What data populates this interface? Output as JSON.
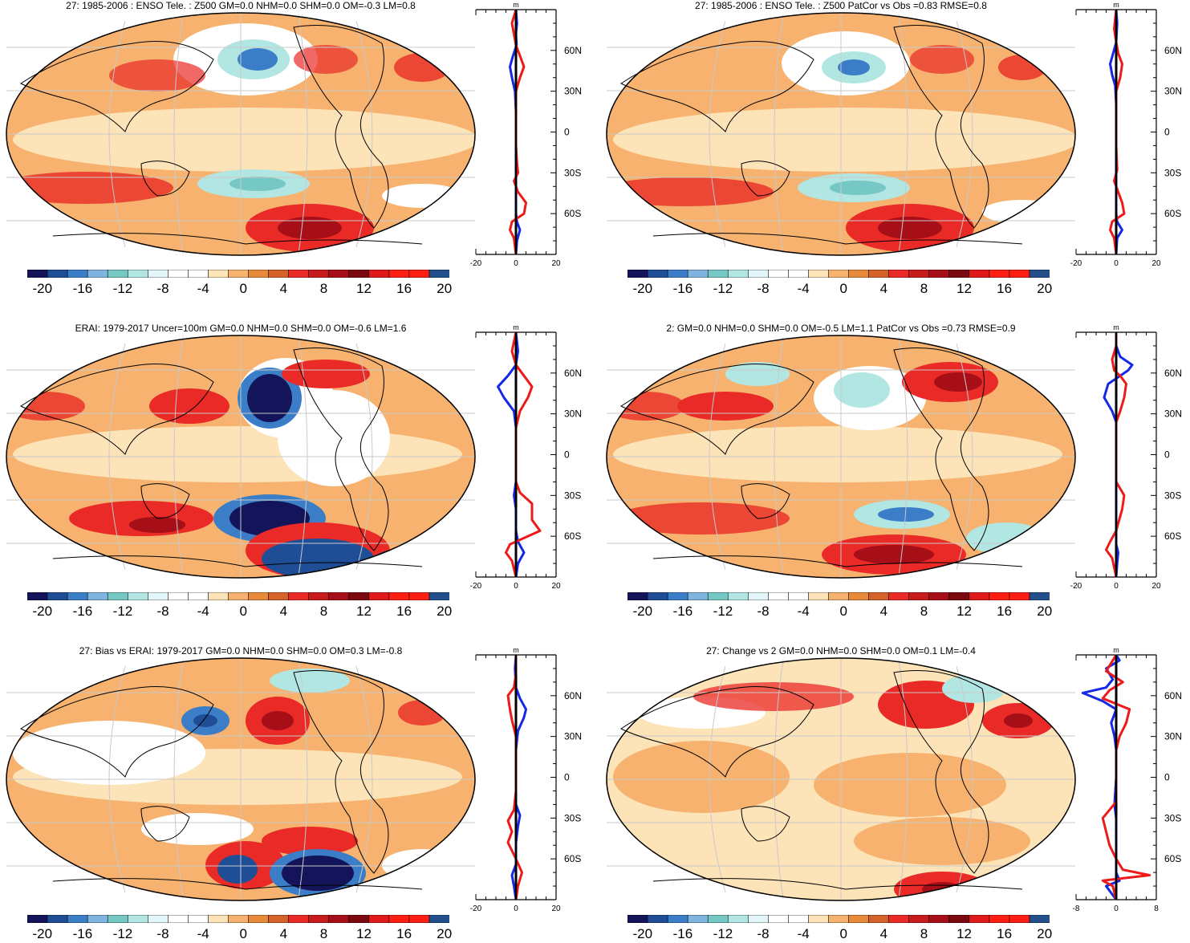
{
  "colorbar": {
    "colors": [
      "#14145a",
      "#1f4e96",
      "#3b7ec7",
      "#7fb3e0",
      "#76c8c4",
      "#b2e6e2",
      "#e3f7fb",
      "#ffffff",
      "#ffffff",
      "#fde3b8",
      "#f6b26e",
      "#e78a3c",
      "#d4622a",
      "#ea2a26",
      "#c81c1c",
      "#a60f18",
      "#7c0810",
      "#e01a1a",
      "#ff1e14",
      "#ff1e14",
      "#234f8a"
    ],
    "labels": [
      "-20",
      "-16",
      "-12",
      "-8",
      "-4",
      "0",
      "4",
      "8",
      "12",
      "16",
      "20"
    ]
  },
  "panels": [
    {
      "title": "27: 1985-2006 : ENSO Tele. : Z500 GM=0.0 NHM=0.0 SHM=0.0 OM=-0.3 LM=0.8",
      "zonal_unit": "m",
      "zonal_xticks": [
        "-20",
        "0",
        "20"
      ],
      "zonal_yticks": [
        "60N",
        "30N",
        "0",
        "30S",
        "60S"
      ],
      "zonal_range": [
        -20,
        20
      ],
      "blue_curve": [
        [
          -90,
          0
        ],
        [
          -80,
          0.5
        ],
        [
          -72,
          2
        ],
        [
          -66,
          0.5
        ],
        [
          -60,
          0
        ],
        [
          -45,
          0
        ],
        [
          -30,
          0
        ],
        [
          -15,
          0
        ],
        [
          0,
          0
        ],
        [
          15,
          0
        ],
        [
          30,
          -0.5
        ],
        [
          40,
          -2
        ],
        [
          48,
          -3
        ],
        [
          56,
          -1.5
        ],
        [
          64,
          0.3
        ],
        [
          72,
          0
        ],
        [
          80,
          0.5
        ],
        [
          90,
          0
        ]
      ],
      "red_curve": [
        [
          -90,
          0
        ],
        [
          -78,
          -1
        ],
        [
          -72,
          -3
        ],
        [
          -66,
          -2
        ],
        [
          -60,
          4
        ],
        [
          -52,
          5
        ],
        [
          -44,
          1
        ],
        [
          -36,
          -1
        ],
        [
          -30,
          1
        ],
        [
          -22,
          0.5
        ],
        [
          -10,
          0
        ],
        [
          10,
          0
        ],
        [
          30,
          0
        ],
        [
          40,
          2
        ],
        [
          48,
          4
        ],
        [
          56,
          2
        ],
        [
          64,
          0
        ],
        [
          72,
          -1
        ],
        [
          80,
          -2
        ],
        [
          90,
          0
        ]
      ]
    },
    {
      "title": "27: 1985-2006 : ENSO Tele. : Z500 PatCor vs Obs =0.83 RMSE=0.8",
      "zonal_unit": "m",
      "zonal_xticks": [
        "-20",
        "0",
        "20"
      ],
      "zonal_yticks": [
        "60N",
        "30N",
        "0",
        "30S",
        "60S"
      ],
      "zonal_range": [
        -20,
        20
      ],
      "blue_curve": [
        [
          -90,
          0
        ],
        [
          -78,
          0.5
        ],
        [
          -72,
          3
        ],
        [
          -66,
          0.5
        ],
        [
          -60,
          0
        ],
        [
          -40,
          0
        ],
        [
          -20,
          0
        ],
        [
          0,
          0
        ],
        [
          20,
          0
        ],
        [
          34,
          -0.5
        ],
        [
          42,
          -2
        ],
        [
          50,
          -3
        ],
        [
          58,
          -1.5
        ],
        [
          66,
          0
        ],
        [
          80,
          0.5
        ],
        [
          90,
          0
        ]
      ],
      "red_curve": [
        [
          -90,
          0
        ],
        [
          -78,
          -1
        ],
        [
          -72,
          -3
        ],
        [
          -66,
          -2
        ],
        [
          -60,
          4
        ],
        [
          -52,
          3
        ],
        [
          -44,
          1
        ],
        [
          -36,
          -1
        ],
        [
          -28,
          0.5
        ],
        [
          -10,
          0
        ],
        [
          10,
          0
        ],
        [
          30,
          0
        ],
        [
          40,
          2
        ],
        [
          50,
          3
        ],
        [
          58,
          1
        ],
        [
          66,
          0
        ],
        [
          76,
          -1
        ],
        [
          90,
          0
        ]
      ]
    },
    {
      "title": "ERAI: 1979-2017 Uncer=100m GM=0.0 NHM=0.0 SHM=0.0 OM=-0.6 LM=1.6",
      "zonal_unit": "m",
      "zonal_xticks": [
        "-20",
        "0",
        "20"
      ],
      "zonal_yticks": [
        "60N",
        "30N",
        "0",
        "30S",
        "60S"
      ],
      "zonal_range": [
        -20,
        20
      ],
      "blue_curve": [
        [
          -90,
          0
        ],
        [
          -80,
          1
        ],
        [
          -72,
          4
        ],
        [
          -64,
          1
        ],
        [
          -56,
          0
        ],
        [
          -40,
          0
        ],
        [
          -30,
          -1
        ],
        [
          -20,
          0
        ],
        [
          0,
          0
        ],
        [
          20,
          0
        ],
        [
          32,
          -1
        ],
        [
          42,
          -6
        ],
        [
          50,
          -9
        ],
        [
          58,
          -4
        ],
        [
          66,
          0
        ],
        [
          76,
          1
        ],
        [
          90,
          0
        ]
      ],
      "red_curve": [
        [
          -90,
          0
        ],
        [
          -78,
          -2
        ],
        [
          -72,
          -5
        ],
        [
          -66,
          -3
        ],
        [
          -56,
          12
        ],
        [
          -48,
          8
        ],
        [
          -36,
          8
        ],
        [
          -28,
          2
        ],
        [
          -20,
          0
        ],
        [
          0,
          0
        ],
        [
          20,
          0
        ],
        [
          32,
          2
        ],
        [
          42,
          6
        ],
        [
          50,
          8
        ],
        [
          58,
          4
        ],
        [
          66,
          0
        ],
        [
          76,
          -2
        ],
        [
          90,
          0
        ]
      ]
    },
    {
      "title": "2: GM=0.0 NHM=0.0 SHM=0.0 OM=-0.5 LM=1.1 PatCor vs Obs =0.73 RMSE=0.9",
      "zonal_unit": "m",
      "zonal_xticks": [
        "-20",
        "0",
        "20"
      ],
      "zonal_yticks": [
        "60N",
        "30N",
        "0",
        "30S",
        "60S"
      ],
      "zonal_range": [
        -20,
        20
      ],
      "blue_curve": [
        [
          -90,
          0
        ],
        [
          -80,
          0.5
        ],
        [
          -72,
          1
        ],
        [
          -66,
          0
        ],
        [
          -50,
          0
        ],
        [
          -32,
          0
        ],
        [
          -20,
          0
        ],
        [
          0,
          0
        ],
        [
          24,
          0
        ],
        [
          32,
          -2
        ],
        [
          42,
          -6
        ],
        [
          52,
          -4
        ],
        [
          58,
          2
        ],
        [
          62,
          6
        ],
        [
          66,
          8
        ],
        [
          72,
          2
        ],
        [
          80,
          0
        ],
        [
          90,
          0
        ]
      ],
      "red_curve": [
        [
          -90,
          0
        ],
        [
          -76,
          -2
        ],
        [
          -70,
          -5
        ],
        [
          -64,
          -3
        ],
        [
          -56,
          0
        ],
        [
          -40,
          3
        ],
        [
          -30,
          4
        ],
        [
          -20,
          0
        ],
        [
          0,
          0
        ],
        [
          24,
          0
        ],
        [
          32,
          2
        ],
        [
          42,
          4
        ],
        [
          52,
          5
        ],
        [
          58,
          2
        ],
        [
          62,
          -1
        ],
        [
          70,
          -2
        ],
        [
          80,
          0
        ],
        [
          90,
          0
        ]
      ]
    },
    {
      "title": "27: Bias vs ERAI: 1979-2017 GM=0.0 NHM=0.0 SHM=0.0 OM=0.3 LM=-0.8",
      "zonal_unit": "m",
      "zonal_xticks": [
        "-20",
        "0",
        "20"
      ],
      "zonal_yticks": [
        "60N",
        "30N",
        "0",
        "30S",
        "60S"
      ],
      "zonal_range": [
        -20,
        20
      ],
      "blue_curve": [
        [
          -90,
          0
        ],
        [
          -80,
          -1
        ],
        [
          -72,
          -2
        ],
        [
          -64,
          0
        ],
        [
          -48,
          0
        ],
        [
          -36,
          1
        ],
        [
          -28,
          2
        ],
        [
          -20,
          0
        ],
        [
          0,
          0
        ],
        [
          20,
          0
        ],
        [
          34,
          1
        ],
        [
          44,
          4
        ],
        [
          50,
          5
        ],
        [
          58,
          2
        ],
        [
          66,
          0
        ],
        [
          80,
          -0.5
        ],
        [
          90,
          0
        ]
      ],
      "red_curve": [
        [
          -90,
          0
        ],
        [
          -80,
          1
        ],
        [
          -70,
          3
        ],
        [
          -60,
          0
        ],
        [
          -48,
          -4
        ],
        [
          -40,
          -2
        ],
        [
          -32,
          -4
        ],
        [
          -24,
          -1
        ],
        [
          -10,
          0
        ],
        [
          10,
          0
        ],
        [
          30,
          0
        ],
        [
          42,
          -2
        ],
        [
          50,
          -3
        ],
        [
          60,
          -4
        ],
        [
          66,
          -1
        ],
        [
          76,
          0
        ],
        [
          90,
          0
        ]
      ]
    },
    {
      "title": "27: Change vs 2 GM=0.0 NHM=0.0 SHM=0.0 OM=0.1 LM=-0.4",
      "zonal_unit": "m",
      "zonal_xticks": [
        "-8",
        "0",
        "8"
      ],
      "zonal_yticks": [
        "60N",
        "30N",
        "0",
        "30S",
        "60S"
      ],
      "zonal_range": [
        -12,
        12
      ],
      "blue_curve": [
        [
          -90,
          0
        ],
        [
          -80,
          -3
        ],
        [
          -76,
          1
        ],
        [
          -70,
          0
        ],
        [
          -56,
          0
        ],
        [
          -40,
          0
        ],
        [
          -30,
          0
        ],
        [
          -20,
          -0.5
        ],
        [
          0,
          0
        ],
        [
          20,
          0
        ],
        [
          30,
          -0.5
        ],
        [
          40,
          -1.5
        ],
        [
          50,
          0
        ],
        [
          56,
          -4
        ],
        [
          62,
          -10
        ],
        [
          66,
          -3
        ],
        [
          72,
          -1
        ],
        [
          80,
          -3
        ],
        [
          86,
          1
        ],
        [
          90,
          0
        ]
      ],
      "red_curve": [
        [
          -90,
          0
        ],
        [
          -80,
          -1
        ],
        [
          -76,
          -4
        ],
        [
          -72,
          10
        ],
        [
          -68,
          2
        ],
        [
          -60,
          0
        ],
        [
          -50,
          -2
        ],
        [
          -40,
          -3
        ],
        [
          -30,
          -4
        ],
        [
          -24,
          -2
        ],
        [
          -18,
          0
        ],
        [
          0,
          0
        ],
        [
          20,
          0
        ],
        [
          30,
          1
        ],
        [
          40,
          3
        ],
        [
          50,
          4
        ],
        [
          58,
          -4
        ],
        [
          64,
          -2
        ],
        [
          70,
          2
        ],
        [
          78,
          -3
        ],
        [
          86,
          -1
        ],
        [
          90,
          0
        ]
      ]
    }
  ]
}
